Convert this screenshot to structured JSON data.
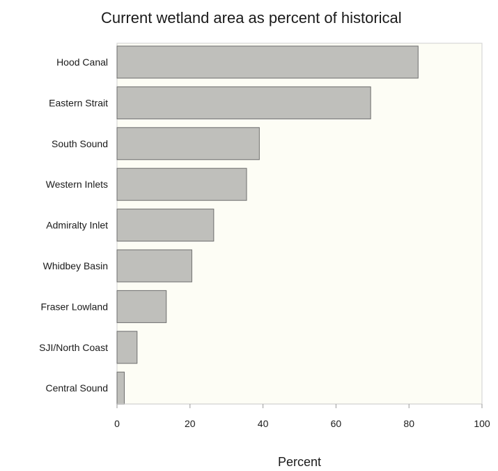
{
  "chart_data": {
    "type": "bar",
    "orientation": "horizontal",
    "title": "Current wetland area as percent of historical",
    "xlabel": "Percent",
    "ylabel": "",
    "xlim": [
      0,
      100
    ],
    "x_ticks": [
      0,
      20,
      40,
      60,
      80,
      100
    ],
    "grid": false,
    "legend": "none",
    "categories": [
      "Hood Canal",
      "Eastern Strait",
      "South Sound",
      "Western Inlets",
      "Admiralty Inlet",
      "Whidbey Basin",
      "Fraser Lowland",
      "SJI/North Coast",
      "Central Sound"
    ],
    "values": [
      82.5,
      69.5,
      39,
      35.5,
      26.5,
      20.5,
      13.5,
      5.5,
      2
    ],
    "colors": {
      "bar_fill": "#bfbfbb",
      "bar_stroke": "#6e6e6e",
      "plot_background": "#fdfdf5",
      "axis": "#c8c8c8",
      "text": "#1a1a1a"
    }
  }
}
